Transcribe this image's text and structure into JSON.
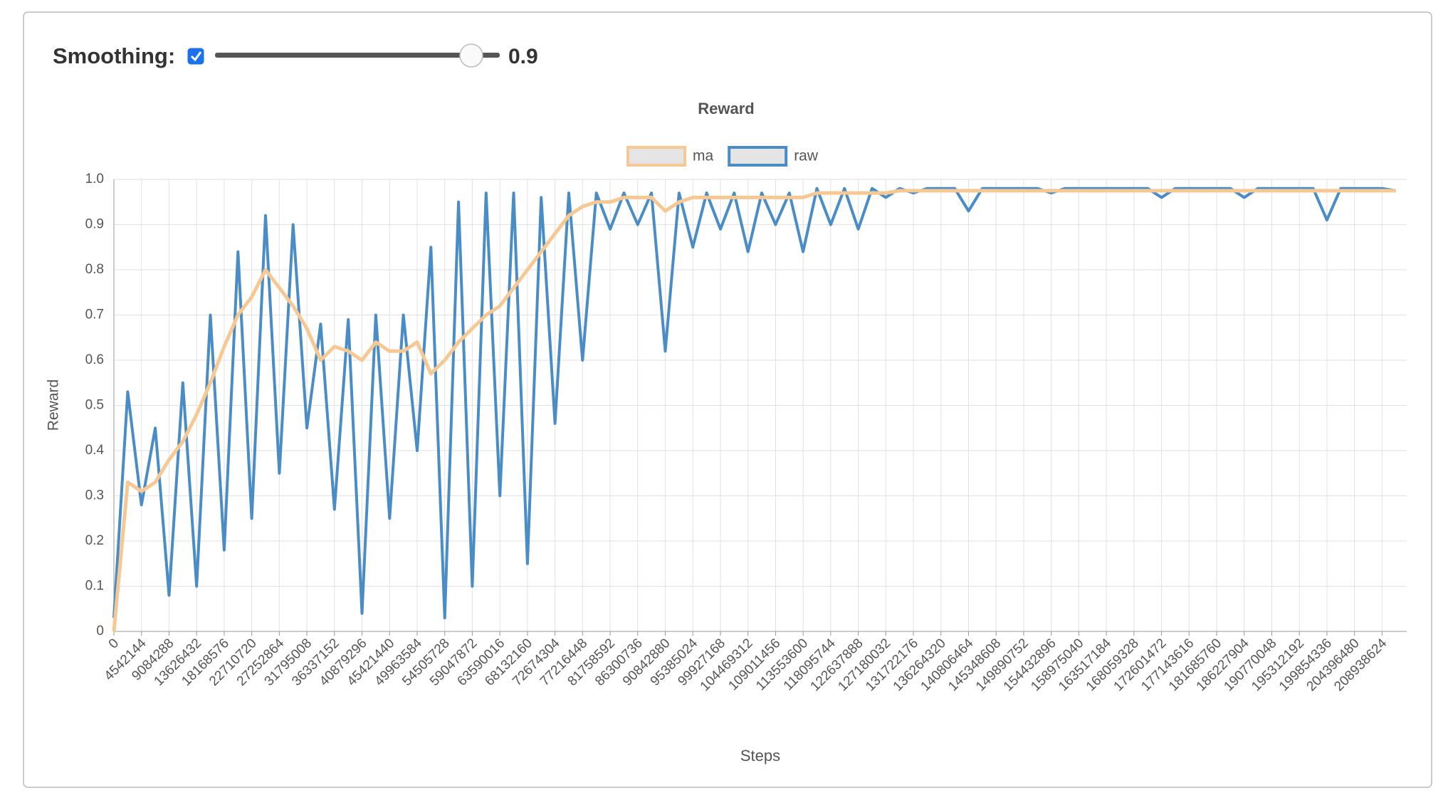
{
  "controls": {
    "smoothing_label": "Smoothing:",
    "smoothing_enabled": true,
    "smoothing_value": 0.9
  },
  "chart_data": {
    "type": "line",
    "title": "Reward",
    "x_label": "Steps",
    "y_label": "Reward",
    "x": [
      0,
      2271072,
      4542144,
      6813216,
      9084288,
      11355360,
      13626432,
      15897504,
      18168576,
      20439648,
      22710720,
      24981792,
      27252864,
      29523936,
      31795008,
      34066080,
      36337152,
      38608224,
      40879296,
      43150368,
      45421440,
      47692512,
      49963584,
      52234656,
      54505728,
      56776800,
      59047872,
      61318944,
      63590016,
      65861088,
      68132160,
      70403232,
      72674304,
      74945376,
      77216448,
      79487520,
      81758592,
      84029664,
      86300736,
      88571808,
      90842880,
      93113952,
      95385024,
      97656096,
      99927168,
      102198240,
      104469312,
      106740384,
      109011456,
      111282528,
      113553600,
      115824672,
      118095744,
      120366816,
      122637888,
      124908960,
      127180032,
      129451104,
      131722176,
      133993248,
      136264320,
      138535392,
      140806464,
      143077536,
      145348608,
      147619680,
      149890752,
      152161824,
      154432896,
      156703968,
      158975040,
      161246112,
      163517184,
      165788256,
      168059328,
      170330400,
      172601472,
      174872544,
      177143616,
      179414688,
      181685760,
      183956832,
      186227904,
      188498976,
      190770048,
      193041120,
      195312192,
      197583264,
      199854336,
      202125408,
      204396480,
      206667552,
      208938624,
      211209696
    ],
    "series": [
      {
        "name": "ma",
        "color": "#f6c894",
        "values": [
          0.0,
          0.33,
          0.31,
          0.33,
          0.38,
          0.42,
          0.48,
          0.55,
          0.63,
          0.7,
          0.74,
          0.8,
          0.76,
          0.72,
          0.67,
          0.6,
          0.63,
          0.62,
          0.6,
          0.64,
          0.62,
          0.62,
          0.64,
          0.57,
          0.6,
          0.64,
          0.67,
          0.7,
          0.72,
          0.76,
          0.8,
          0.84,
          0.88,
          0.92,
          0.94,
          0.95,
          0.95,
          0.96,
          0.96,
          0.96,
          0.93,
          0.95,
          0.96,
          0.96,
          0.96,
          0.96,
          0.96,
          0.96,
          0.96,
          0.96,
          0.96,
          0.97,
          0.97,
          0.97,
          0.97,
          0.97,
          0.97,
          0.975,
          0.975,
          0.975,
          0.975,
          0.975,
          0.975,
          0.975,
          0.975,
          0.975,
          0.975,
          0.975,
          0.975,
          0.975,
          0.975,
          0.975,
          0.975,
          0.975,
          0.975,
          0.975,
          0.975,
          0.975,
          0.975,
          0.975,
          0.975,
          0.975,
          0.975,
          0.975,
          0.975,
          0.975,
          0.975,
          0.975,
          0.975,
          0.975,
          0.975,
          0.975,
          0.975,
          0.975
        ]
      },
      {
        "name": "raw",
        "color": "#4a8cc6",
        "values": [
          0.03,
          0.53,
          0.28,
          0.45,
          0.08,
          0.55,
          0.1,
          0.7,
          0.18,
          0.84,
          0.25,
          0.92,
          0.35,
          0.9,
          0.45,
          0.68,
          0.27,
          0.69,
          0.04,
          0.7,
          0.25,
          0.7,
          0.4,
          0.85,
          0.03,
          0.95,
          0.1,
          0.97,
          0.3,
          0.97,
          0.15,
          0.96,
          0.46,
          0.97,
          0.6,
          0.97,
          0.89,
          0.97,
          0.9,
          0.97,
          0.62,
          0.97,
          0.85,
          0.97,
          0.89,
          0.97,
          0.84,
          0.97,
          0.9,
          0.97,
          0.84,
          0.98,
          0.9,
          0.98,
          0.89,
          0.98,
          0.96,
          0.98,
          0.97,
          0.98,
          0.98,
          0.98,
          0.93,
          0.98,
          0.98,
          0.98,
          0.98,
          0.98,
          0.97,
          0.98,
          0.98,
          0.98,
          0.98,
          0.98,
          0.98,
          0.98,
          0.96,
          0.98,
          0.98,
          0.98,
          0.98,
          0.98,
          0.96,
          0.98,
          0.98,
          0.98,
          0.98,
          0.98,
          0.91,
          0.98,
          0.98,
          0.98,
          0.98,
          0.975
        ]
      }
    ],
    "xlim": [
      0,
      213000000
    ],
    "xticks": [
      0,
      4542144,
      9084288,
      13626432,
      18168576,
      22710720,
      27252864,
      31795008,
      36337152,
      40879296,
      45421440,
      49963584,
      54505728,
      59047872,
      63590016,
      68132160,
      72674304,
      77216448,
      81758592,
      86300736,
      90842880,
      95385024,
      99927168,
      104469312,
      109011456,
      113553600,
      118095744,
      122637888,
      127180032,
      131722176,
      136264320,
      140806464,
      145348608,
      149890752,
      154432896,
      158975040,
      163517184,
      168059328,
      172601472,
      177143616,
      181685760,
      186227904,
      190770048,
      195312192,
      199854336,
      204396480,
      208938624
    ],
    "ylim": [
      0,
      1
    ],
    "yticks": [
      0,
      0.1,
      0.2,
      0.3,
      0.4,
      0.5,
      0.6,
      0.7,
      0.8,
      0.9,
      {
        "value": 1,
        "label": "1.0"
      }
    ],
    "grid": true
  }
}
